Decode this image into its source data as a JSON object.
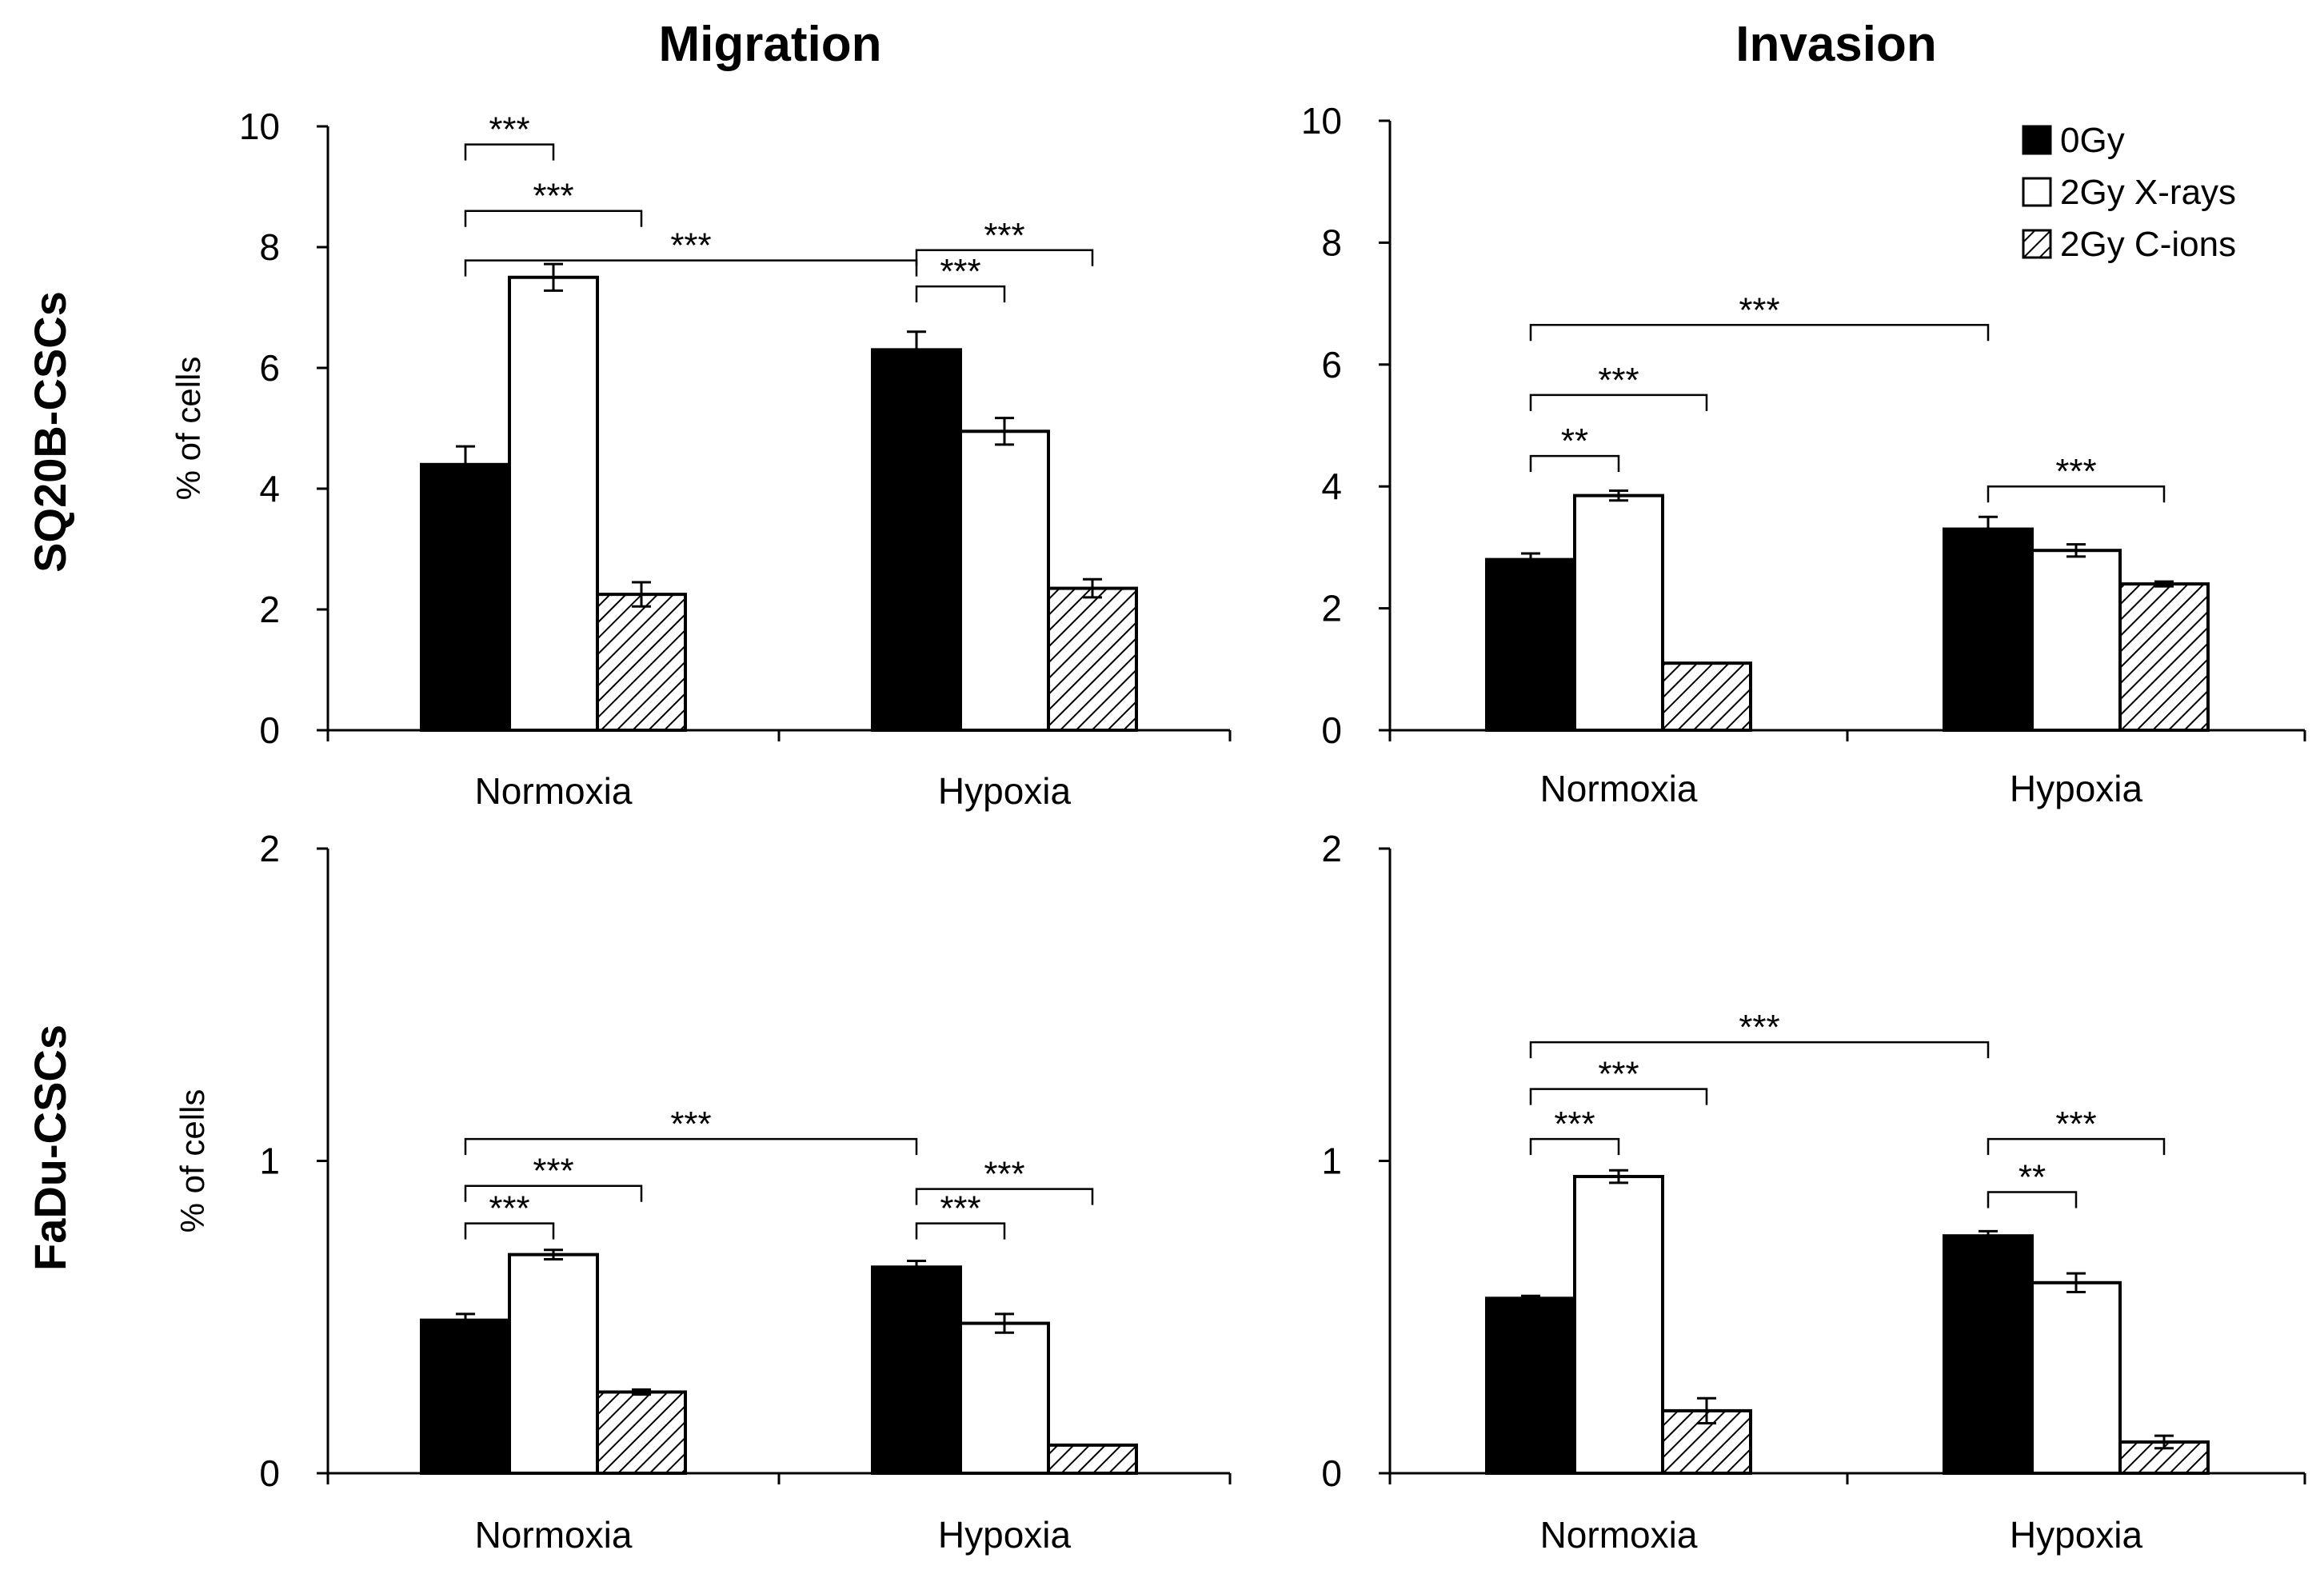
{
  "figure": {
    "column_titles": [
      "Migration",
      "Invasion"
    ],
    "row_labels": [
      "SQ20B-CSCs",
      "FaDu-CSCs"
    ]
  },
  "legend": [
    {
      "name": "0Gy",
      "fill": "#000000"
    },
    {
      "name": "2Gy X-rays",
      "fill": "#ffffff"
    },
    {
      "name": "2Gy C-ions",
      "fill": "hatch"
    }
  ],
  "colors": {
    "bar_stroke": "#000000",
    "axis": "#000000",
    "hatch_line": "#000000"
  },
  "chart_data": [
    {
      "type": "bar",
      "panel": "SQ20B-CSCs Migration",
      "categories": [
        "Normoxia",
        "Hypoxia"
      ],
      "ylabel": "% of  cells",
      "ylim": [
        0,
        10
      ],
      "yticks": [
        "0",
        "2",
        "4",
        "6",
        "8",
        "10"
      ],
      "series": [
        {
          "name": "0Gy",
          "values": [
            4.4,
            6.3
          ],
          "errors": [
            0.3,
            0.3
          ]
        },
        {
          "name": "2Gy X-rays",
          "values": [
            7.5,
            4.95
          ],
          "errors": [
            0.22,
            0.22
          ]
        },
        {
          "name": "2Gy C-ions",
          "values": [
            2.25,
            2.35
          ],
          "errors": [
            0.2,
            0.15
          ]
        }
      ],
      "significance": [
        {
          "from": [
            0,
            0
          ],
          "to": [
            1,
            0
          ],
          "label": "***",
          "level": 7.78
        },
        {
          "from": [
            0,
            0
          ],
          "to": [
            0,
            2
          ],
          "label": "***",
          "level": 8.6
        },
        {
          "from": [
            0,
            0
          ],
          "to": [
            0,
            1
          ],
          "label": "***",
          "level": 9.7
        },
        {
          "from": [
            1,
            0
          ],
          "to": [
            1,
            2
          ],
          "label": "***",
          "level": 7.95
        },
        {
          "from": [
            1,
            0
          ],
          "to": [
            1,
            1
          ],
          "label": "***",
          "level": 7.35
        }
      ]
    },
    {
      "type": "bar",
      "panel": "SQ20B-CSCs Invasion",
      "categories": [
        "Normoxia",
        "Hypoxia"
      ],
      "ylabel": "",
      "ylim": [
        0,
        10
      ],
      "yticks": [
        "0",
        "2",
        "4",
        "6",
        "8",
        "10"
      ],
      "series": [
        {
          "name": "0Gy",
          "values": [
            2.8,
            3.3
          ],
          "errors": [
            0.1,
            0.2
          ]
        },
        {
          "name": "2Gy X-rays",
          "values": [
            3.85,
            2.95
          ],
          "errors": [
            0.08,
            0.1
          ]
        },
        {
          "name": "2Gy C-ions",
          "values": [
            1.1,
            2.4
          ],
          "errors": [
            0,
            0.04
          ]
        }
      ],
      "significance": [
        {
          "from": [
            0,
            0
          ],
          "to": [
            1,
            0
          ],
          "label": "***",
          "level": 6.65
        },
        {
          "from": [
            0,
            0
          ],
          "to": [
            0,
            2
          ],
          "label": "***",
          "level": 5.5
        },
        {
          "from": [
            0,
            0
          ],
          "to": [
            0,
            1
          ],
          "label": "**",
          "level": 4.5
        },
        {
          "from": [
            1,
            0
          ],
          "to": [
            1,
            2
          ],
          "label": "***",
          "level": 4.0
        }
      ]
    },
    {
      "type": "bar",
      "panel": "FaDu-CSCs Migration",
      "categories": [
        "Normoxia",
        "Hypoxia"
      ],
      "ylabel": "% of cells",
      "ylim": [
        0,
        2
      ],
      "yticks": [
        "0",
        "1",
        "2"
      ],
      "series": [
        {
          "name": "0Gy",
          "values": [
            0.49,
            0.66
          ],
          "errors": [
            0.02,
            0.02
          ]
        },
        {
          "name": "2Gy X-rays",
          "values": [
            0.7,
            0.48
          ],
          "errors": [
            0.015,
            0.03
          ]
        },
        {
          "name": "2Gy C-ions",
          "values": [
            0.26,
            0.09
          ],
          "errors": [
            0.008,
            0
          ]
        }
      ],
      "significance": [
        {
          "from": [
            0,
            0
          ],
          "to": [
            1,
            0
          ],
          "label": "***",
          "level": 1.07
        },
        {
          "from": [
            0,
            0
          ],
          "to": [
            0,
            2
          ],
          "label": "***",
          "level": 0.92
        },
        {
          "from": [
            0,
            0
          ],
          "to": [
            0,
            1
          ],
          "label": "***",
          "level": 0.8
        },
        {
          "from": [
            1,
            0
          ],
          "to": [
            1,
            2
          ],
          "label": "***",
          "level": 0.91
        },
        {
          "from": [
            1,
            0
          ],
          "to": [
            1,
            1
          ],
          "label": "***",
          "level": 0.8
        }
      ]
    },
    {
      "type": "bar",
      "panel": "FaDu-CSCs Invasion",
      "categories": [
        "Normoxia",
        "Hypoxia"
      ],
      "ylabel": "",
      "ylim": [
        0,
        2
      ],
      "yticks": [
        "0",
        "1",
        "2"
      ],
      "series": [
        {
          "name": "0Gy",
          "values": [
            0.56,
            0.76
          ],
          "errors": [
            0.008,
            0.015
          ]
        },
        {
          "name": "2Gy X-rays",
          "values": [
            0.95,
            0.61
          ],
          "errors": [
            0.02,
            0.03
          ]
        },
        {
          "name": "2Gy C-ions",
          "values": [
            0.2,
            0.1
          ],
          "errors": [
            0.04,
            0.02
          ]
        }
      ],
      "significance": [
        {
          "from": [
            0,
            0
          ],
          "to": [
            1,
            0
          ],
          "label": "***",
          "level": 1.38
        },
        {
          "from": [
            0,
            0
          ],
          "to": [
            0,
            2
          ],
          "label": "***",
          "level": 1.23
        },
        {
          "from": [
            0,
            0
          ],
          "to": [
            0,
            1
          ],
          "label": "***",
          "level": 1.07
        },
        {
          "from": [
            1,
            0
          ],
          "to": [
            1,
            2
          ],
          "label": "***",
          "level": 1.07
        },
        {
          "from": [
            1,
            0
          ],
          "to": [
            1,
            1
          ],
          "label": "**",
          "level": 0.9
        }
      ]
    }
  ]
}
